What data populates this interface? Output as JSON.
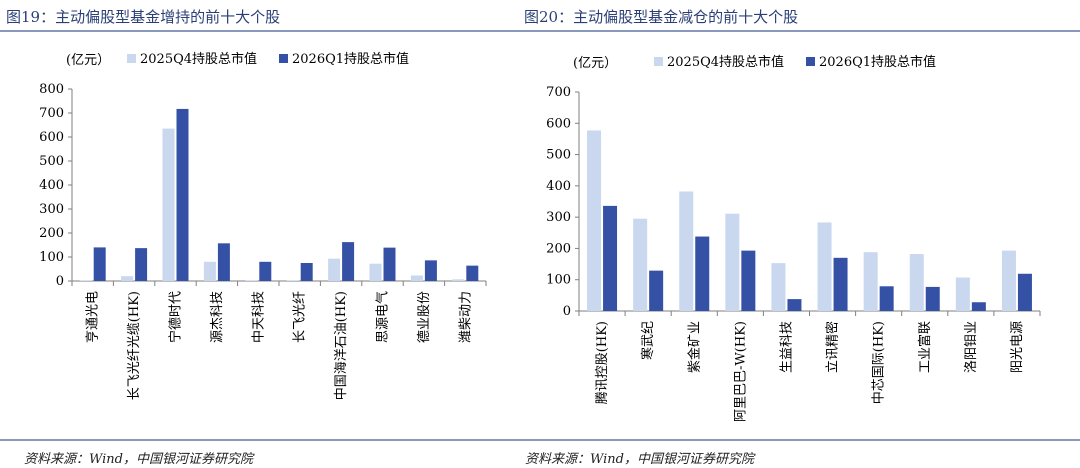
{
  "colors": {
    "title_color": "#2b3f77",
    "rule_color": "#8a98bc",
    "series_light": "#c9d7ef",
    "series_dark": "#3551a6"
  },
  "left": {
    "figure_title": "图19：主动偏股型基金增持的前十大个股",
    "source": "资料来源：Wind，中国银河证券研究院",
    "chart_data": {
      "type": "bar",
      "unit_label": "(亿元）",
      "categories": [
        "亨通光电",
        "长飞光纤光缆(HK)",
        "宁德时代",
        "源杰科技",
        "中天科技",
        "长飞光纤",
        "中国海洋石油(HK)",
        "思源电气",
        "德业股份",
        "潍柴动力"
      ],
      "series": [
        {
          "name": "2025Q4持股总市值",
          "values": [
            3,
            20,
            635,
            80,
            3,
            3,
            93,
            72,
            23,
            7
          ]
        },
        {
          "name": "2026Q1持股总市值",
          "values": [
            140,
            137,
            717,
            157,
            80,
            75,
            162,
            139,
            86,
            64
          ]
        }
      ],
      "ylim": [
        0,
        800
      ],
      "yticks": [
        0,
        100,
        200,
        300,
        400,
        500,
        600,
        700,
        800
      ],
      "grid": false,
      "legend_position": "top"
    }
  },
  "right": {
    "figure_title": "图20：主动偏股型基金减仓的前十大个股",
    "source": "资料来源：Wind，中国银河证券研究院",
    "chart_data": {
      "type": "bar",
      "unit_label": "(亿元）",
      "categories": [
        "腾讯控股(HK)",
        "寒武纪",
        "紫金矿业",
        "阿里巴巴-W(HK)",
        "生益科技",
        "立讯精密",
        "中芯国际(HK)",
        "工业富联",
        "洛阳钼业",
        "阳光电源"
      ],
      "series": [
        {
          "name": "2025Q4持股总市值",
          "values": [
            577,
            295,
            382,
            311,
            153,
            283,
            188,
            182,
            107,
            193
          ]
        },
        {
          "name": "2026Q1持股总市值",
          "values": [
            336,
            129,
            238,
            193,
            38,
            170,
            79,
            77,
            28,
            119
          ]
        }
      ],
      "ylim": [
        0,
        700
      ],
      "yticks": [
        0,
        100,
        200,
        300,
        400,
        500,
        600,
        700
      ],
      "grid": false,
      "legend_position": "top"
    }
  }
}
